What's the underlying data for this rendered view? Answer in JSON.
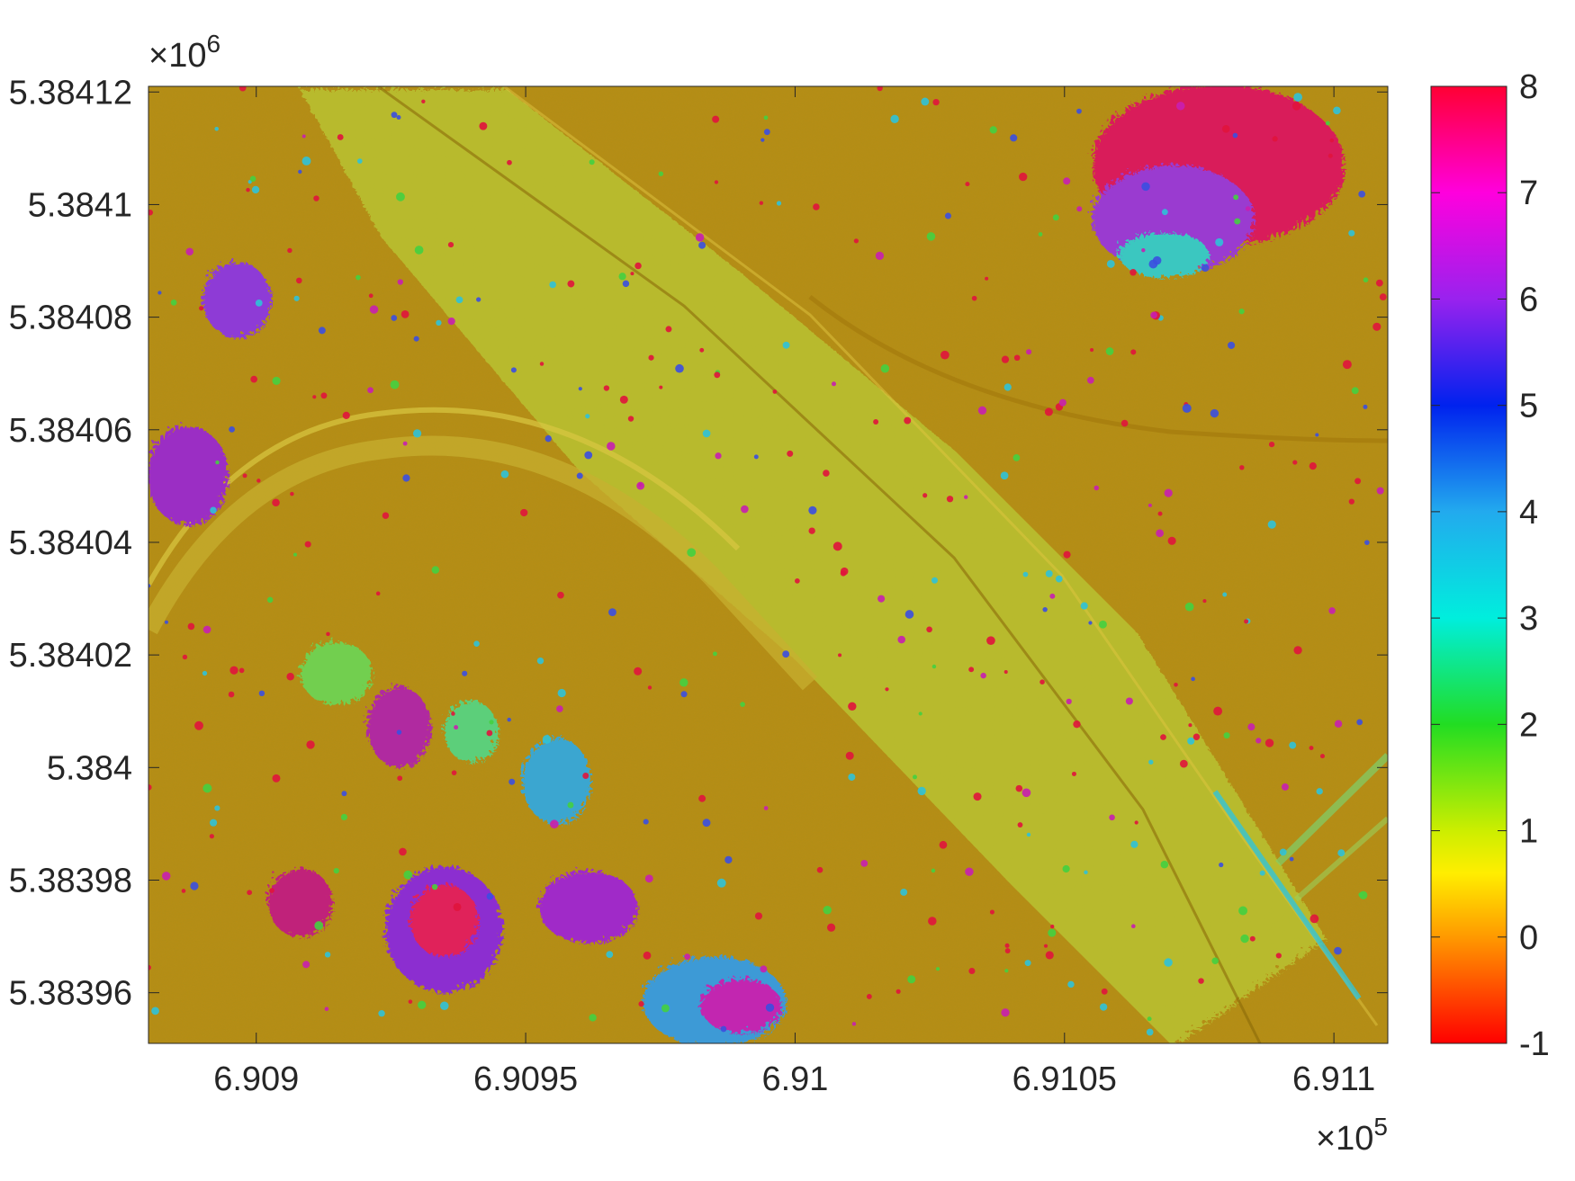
{
  "chart_data": {
    "type": "heatmap",
    "title": "",
    "xlabel": "",
    "ylabel": "",
    "x_exponent_label": "×10",
    "x_exponent": "5",
    "y_exponent_label": "×10",
    "y_exponent": "6",
    "xlim": [
      6.9088,
      6.9111
    ],
    "ylim": [
      5.383951,
      5.384121
    ],
    "x_ticks": [
      6.909,
      6.9095,
      6.91,
      6.9105,
      6.911
    ],
    "x_tick_labels": [
      "6.909",
      "6.9095",
      "6.91",
      "6.9105",
      "6.911"
    ],
    "y_ticks": [
      5.38412,
      5.3841,
      5.38408,
      5.38406,
      5.38404,
      5.38402,
      5.384,
      5.38398,
      5.38396
    ],
    "y_tick_labels": [
      "5.38412",
      "5.3841",
      "5.38408",
      "5.38406",
      "5.38404",
      "5.38402",
      "5.384",
      "5.38398",
      "5.38396"
    ],
    "colorbar": {
      "min": -1,
      "max": 8,
      "ticks": [
        8,
        7,
        6,
        5,
        4,
        3,
        2,
        1,
        0,
        -1
      ],
      "tick_labels": [
        "8",
        "7",
        "6",
        "5",
        "4",
        "3",
        "2",
        "1",
        "0",
        "-1"
      ],
      "colormap": "hsv-like",
      "color_stops": [
        {
          "value": -1,
          "color": "#ff0000"
        },
        {
          "value": 0,
          "color": "#ff9900"
        },
        {
          "value": 0.6,
          "color": "#ffee00"
        },
        {
          "value": 1,
          "color": "#ccee00"
        },
        {
          "value": 2,
          "color": "#22dd22"
        },
        {
          "value": 3,
          "color": "#00eedd"
        },
        {
          "value": 4,
          "color": "#22aaee"
        },
        {
          "value": 5,
          "color": "#0022ee"
        },
        {
          "value": 6,
          "color": "#9922ee"
        },
        {
          "value": 7,
          "color": "#ff00dd"
        },
        {
          "value": 8,
          "color": "#ff0033"
        }
      ]
    },
    "background_color": "#b88d12",
    "grid": false
  }
}
